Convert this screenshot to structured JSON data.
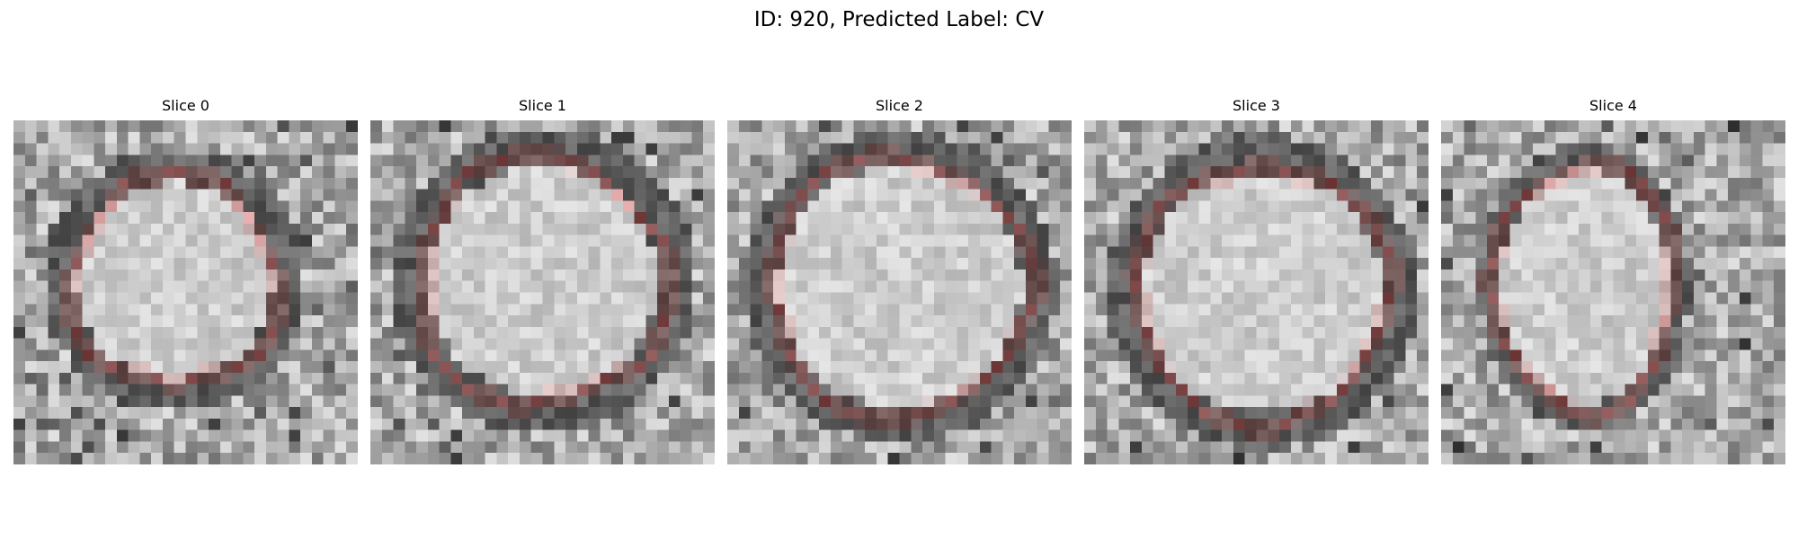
{
  "figure": {
    "title": "ID: 920, Predicted Label: CV",
    "contour_color": "#ff0000",
    "slices": [
      {
        "label": "Slice 0"
      },
      {
        "label": "Slice 1"
      },
      {
        "label": "Slice 2"
      },
      {
        "label": "Slice 3"
      },
      {
        "label": "Slice 4"
      }
    ]
  }
}
